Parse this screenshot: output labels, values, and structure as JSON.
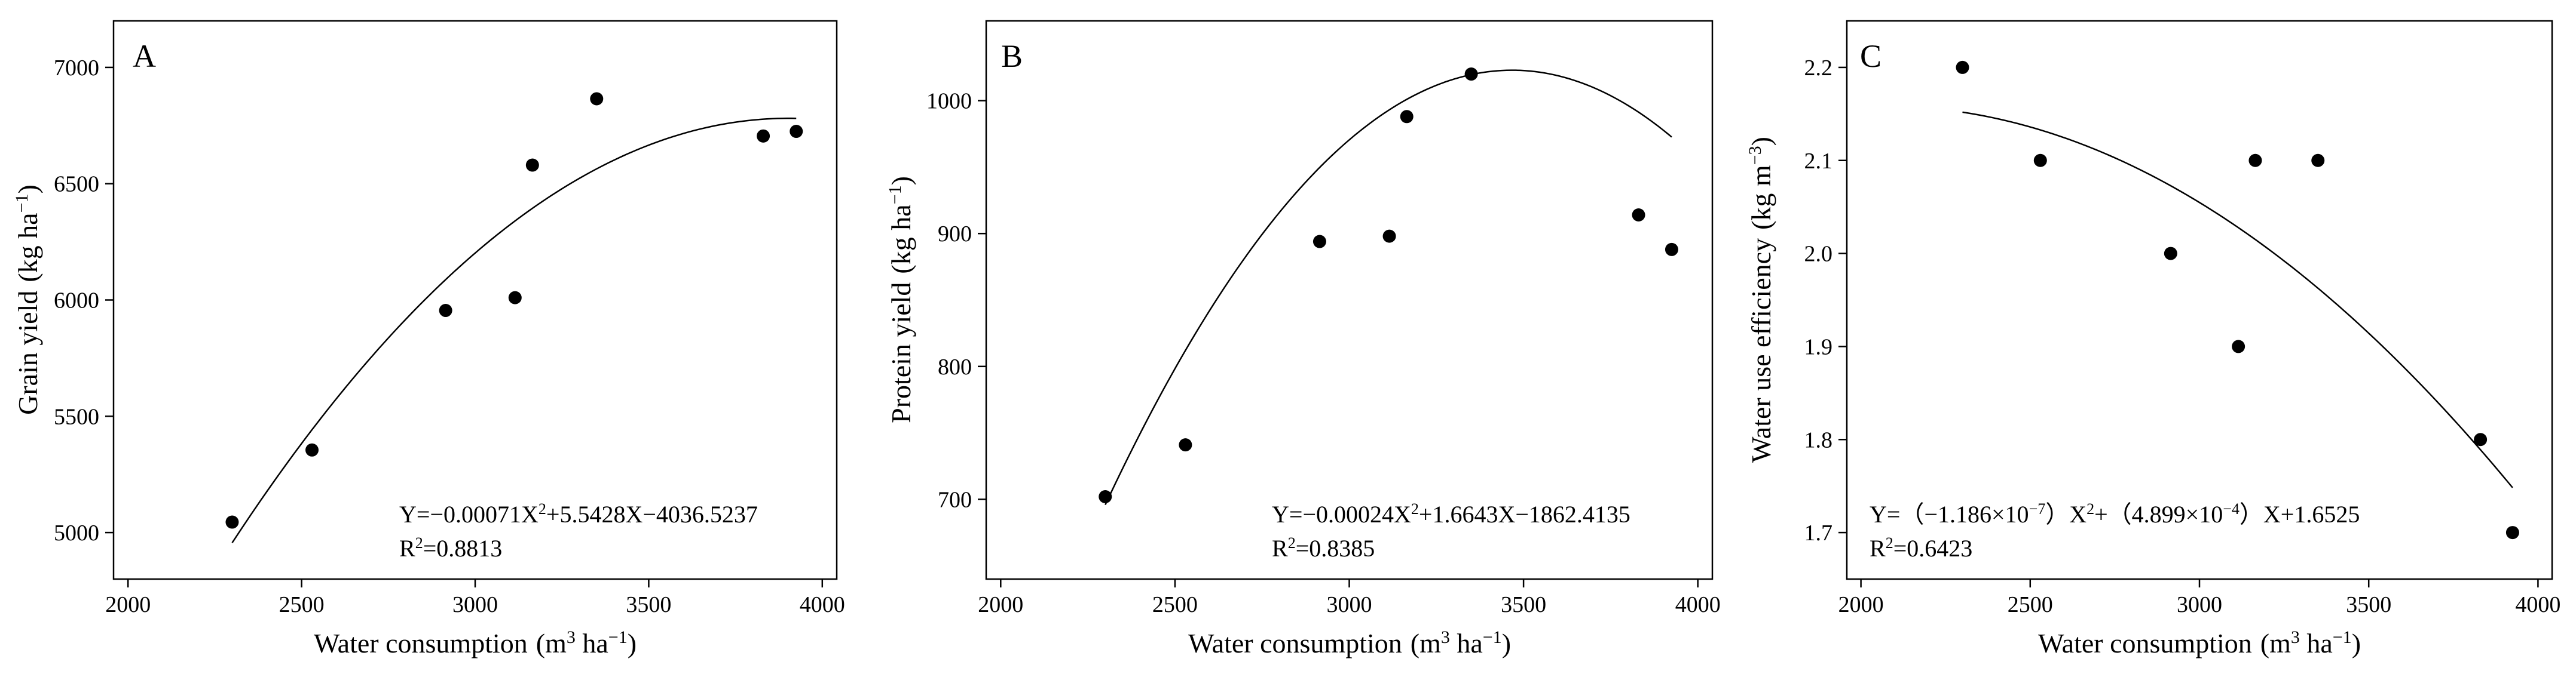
{
  "chart_data": [
    {
      "type": "scatter",
      "panel_label": "A",
      "xlabel": {
        "main": "Water consumption",
        "unit_pre": "(m",
        "unit_sup1": "3",
        "unit_mid": " ha",
        "unit_sup2": "−1",
        "unit_post": ")"
      },
      "ylabel": {
        "main": "Grain yield",
        "unit_pre": "(kg ha",
        "unit_sup": "−1",
        "unit_post": ")"
      },
      "xlim": [
        2000,
        4000
      ],
      "ylim": [
        4800,
        7200
      ],
      "xticks": [
        2000,
        2500,
        3000,
        3500,
        4000
      ],
      "yticks": [
        5000,
        5500,
        6000,
        6500,
        7000
      ],
      "points": [
        {
          "x": 2300,
          "y": 5045
        },
        {
          "x": 2530,
          "y": 5355
        },
        {
          "x": 2915,
          "y": 5955
        },
        {
          "x": 3115,
          "y": 6010
        },
        {
          "x": 3165,
          "y": 6580
        },
        {
          "x": 3350,
          "y": 6865
        },
        {
          "x": 3830,
          "y": 6705
        },
        {
          "x": 3925,
          "y": 6725
        }
      ],
      "fit": {
        "a": -0.00071,
        "b": 5.5428,
        "c": -4036.5237,
        "x_range": [
          2300,
          3925
        ]
      },
      "equation_text": "Y=−0.00071X",
      "equation_sup": "2",
      "equation_rest": "+5.5428X−4036.5237",
      "r2_prefix": "R",
      "r2_sup": "2",
      "r2_value": "=0.8813"
    },
    {
      "type": "scatter",
      "panel_label": "B",
      "xlabel": {
        "main": "Water consumption",
        "unit_pre": "(m",
        "unit_sup1": "3",
        "unit_mid": " ha",
        "unit_sup2": "−1",
        "unit_post": ")"
      },
      "ylabel": {
        "main": "Protein yield",
        "unit_pre": "(kg ha",
        "unit_sup": "−1",
        "unit_post": ")"
      },
      "xlim": [
        2000,
        4000
      ],
      "ylim": [
        640,
        1060
      ],
      "xticks": [
        2000,
        2500,
        3000,
        3500,
        4000
      ],
      "yticks": [
        700,
        800,
        900,
        1000
      ],
      "points": [
        {
          "x": 2300,
          "y": 702
        },
        {
          "x": 2530,
          "y": 741
        },
        {
          "x": 2915,
          "y": 894
        },
        {
          "x": 3115,
          "y": 898
        },
        {
          "x": 3165,
          "y": 988
        },
        {
          "x": 3350,
          "y": 1020
        },
        {
          "x": 3830,
          "y": 914
        },
        {
          "x": 3925,
          "y": 888
        }
      ],
      "fit": {
        "a": -0.00024,
        "b": 1.6643,
        "c": -1862.4135,
        "x_range": [
          2300,
          3925
        ]
      },
      "equation_text": "Y=−0.00024X",
      "equation_sup": "2",
      "equation_rest": "+1.6643X−1862.4135",
      "r2_prefix": "R",
      "r2_sup": "2",
      "r2_value": "=0.8385"
    },
    {
      "type": "scatter",
      "panel_label": "C",
      "xlabel": {
        "main": "Water consumption",
        "unit_pre": "(m",
        "unit_sup1": "3",
        "unit_mid": " ha",
        "unit_sup2": "−1",
        "unit_post": ")"
      },
      "ylabel": {
        "main": "Water use efficiency",
        "unit_pre": "(kg m",
        "unit_sup": "−3",
        "unit_post": ")"
      },
      "xlim": [
        2000,
        4000
      ],
      "ylim": [
        1.65,
        2.25
      ],
      "xticks": [
        2000,
        2500,
        3000,
        3500,
        4000
      ],
      "yticks": [
        1.7,
        1.8,
        1.9,
        2.0,
        2.1,
        2.2
      ],
      "ytick_labels": [
        "1.7",
        "1.8",
        "1.9",
        "2.0",
        "2.1",
        "2.2"
      ],
      "points": [
        {
          "x": 2300,
          "y": 2.2
        },
        {
          "x": 2530,
          "y": 2.1
        },
        {
          "x": 2915,
          "y": 2.0
        },
        {
          "x": 3115,
          "y": 1.9
        },
        {
          "x": 3165,
          "y": 2.1
        },
        {
          "x": 3350,
          "y": 2.1
        },
        {
          "x": 3830,
          "y": 1.8
        },
        {
          "x": 3925,
          "y": 1.7
        }
      ],
      "fit": {
        "a": -1.186e-07,
        "b": 0.0004899,
        "c": 1.6525,
        "x_range": [
          2300,
          3925
        ]
      },
      "equation_text": "Y=（−1.186×10",
      "equation_sup": "−7",
      "equation_rest": "）X",
      "equation_sup2": "2",
      "equation_rest2": "+（4.899×10",
      "equation_sup3": "−4",
      "equation_rest3": "）X+1.6525",
      "r2_prefix": "R",
      "r2_sup": "2",
      "r2_value": "=0.6423"
    }
  ]
}
